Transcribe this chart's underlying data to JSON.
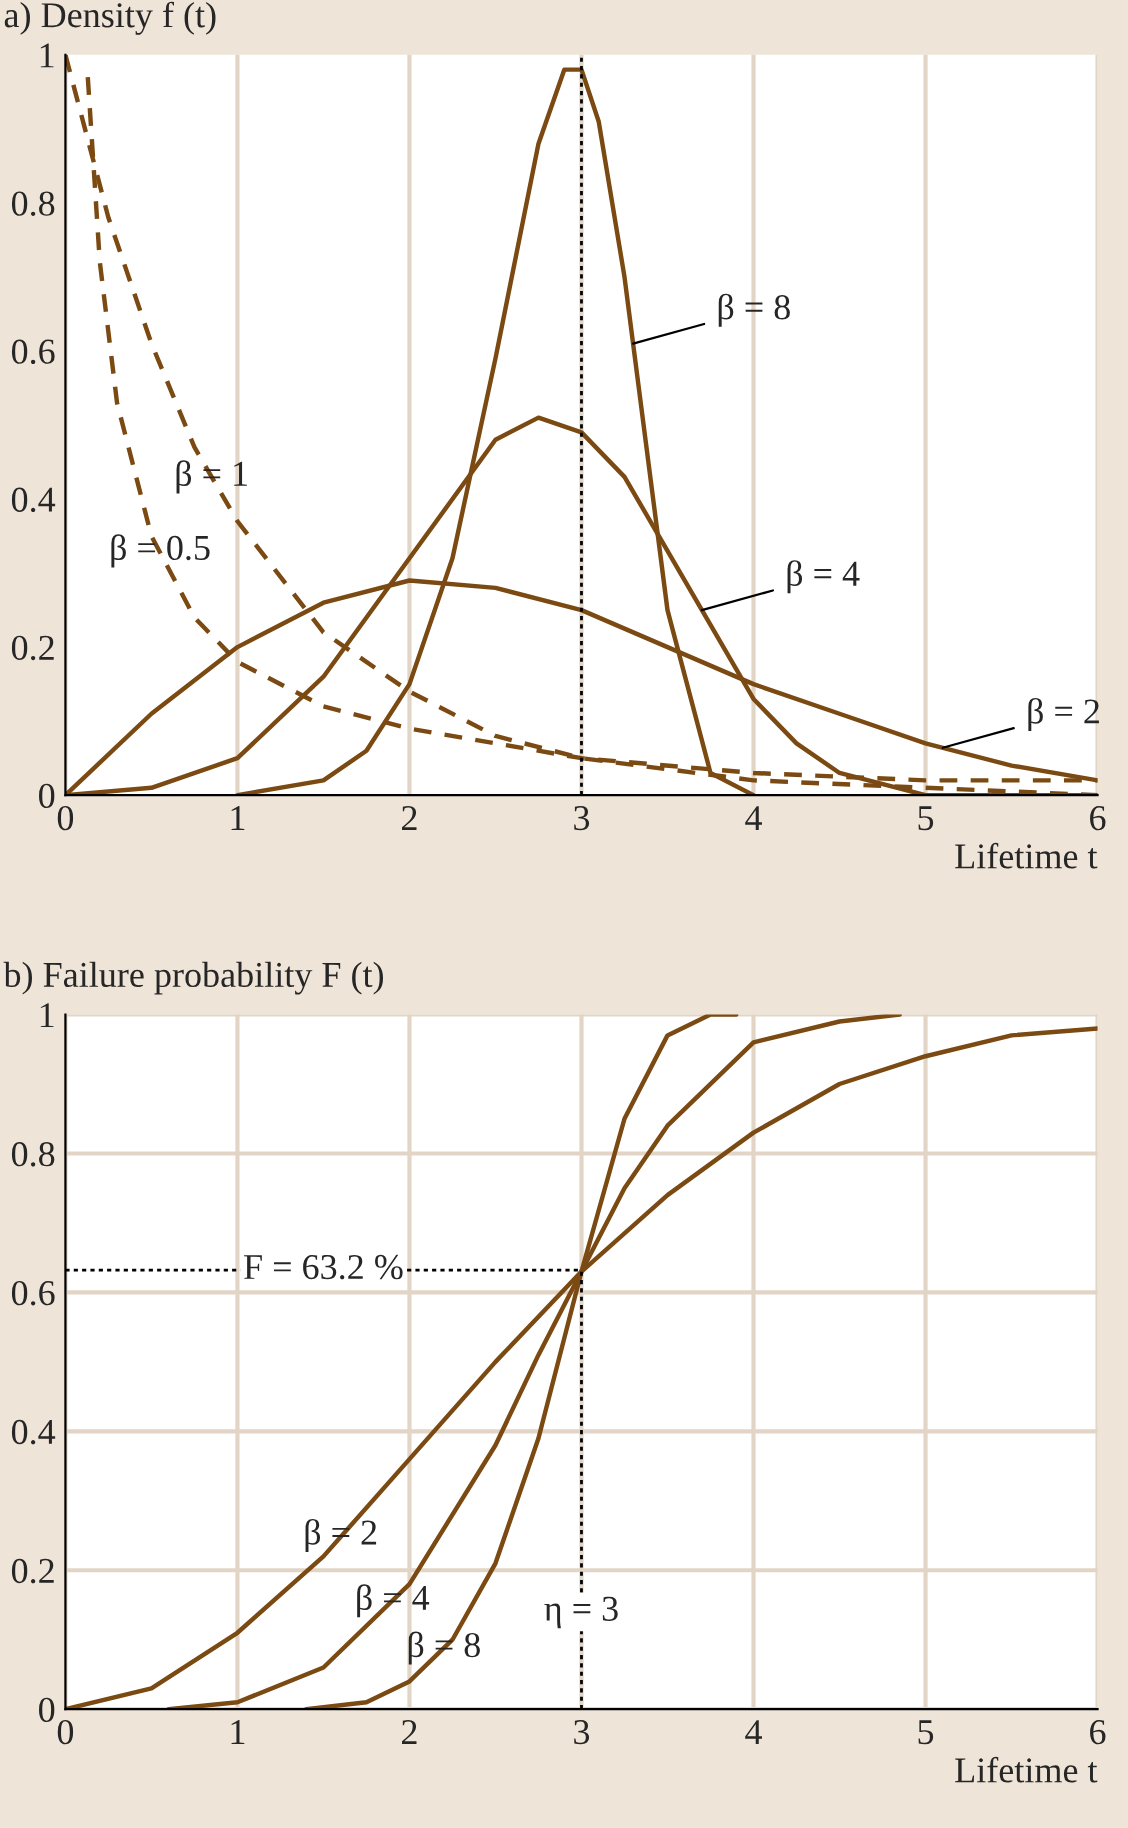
{
  "chart_data": [
    {
      "type": "line",
      "title": "a) Density f (t)",
      "xlabel": "Lifetime t",
      "xlim": [
        0,
        6
      ],
      "ylim": [
        0,
        1
      ],
      "xticks": [
        0,
        1,
        2,
        3,
        4,
        5,
        6
      ],
      "yticks": [
        0,
        0.2,
        0.4,
        0.6,
        0.8,
        1
      ],
      "grid": "x",
      "legend": false,
      "series": [
        {
          "color": "#7b4a12",
          "line_style": "dashed",
          "x": [
            0.13,
            0.2,
            0.3,
            0.5,
            0.75,
            1,
            1.5,
            2,
            2.5,
            3,
            4,
            5,
            6
          ],
          "values": [
            0.97,
            0.72,
            0.53,
            0.35,
            0.24,
            0.18,
            0.12,
            0.09,
            0.07,
            0.05,
            0.03,
            0.02,
            0.02
          ]
        },
        {
          "color": "#7b4a12",
          "line_style": "dashed",
          "x": [
            0,
            0.25,
            0.5,
            0.75,
            1,
            1.5,
            2,
            2.5,
            3,
            4,
            5,
            6
          ],
          "values": [
            1.0,
            0.78,
            0.61,
            0.47,
            0.37,
            0.22,
            0.14,
            0.08,
            0.05,
            0.02,
            0.01,
            0.0
          ]
        },
        {
          "color": "#7b4a12",
          "line_style": "solid",
          "x": [
            0,
            0.5,
            1,
            1.5,
            2,
            2.5,
            3,
            3.5,
            4,
            4.5,
            5,
            5.5,
            6
          ],
          "values": [
            0,
            0.11,
            0.2,
            0.26,
            0.29,
            0.28,
            0.25,
            0.2,
            0.15,
            0.11,
            0.07,
            0.04,
            0.02
          ]
        },
        {
          "color": "#7b4a12",
          "line_style": "solid",
          "x": [
            0,
            0.5,
            1,
            1.5,
            2,
            2.5,
            2.75,
            3,
            3.25,
            3.5,
            3.75,
            4,
            4.25,
            4.5,
            5,
            6
          ],
          "values": [
            0,
            0.01,
            0.05,
            0.16,
            0.32,
            0.48,
            0.51,
            0.49,
            0.43,
            0.33,
            0.23,
            0.13,
            0.07,
            0.03,
            0.0,
            0
          ]
        },
        {
          "color": "#7b4a12",
          "line_style": "solid",
          "x": [
            1,
            1.5,
            1.75,
            2,
            2.25,
            2.5,
            2.75,
            2.9,
            3,
            3.1,
            3.25,
            3.5,
            3.75,
            4
          ],
          "values": [
            0,
            0.02,
            0.06,
            0.15,
            0.32,
            0.59,
            0.88,
            0.98,
            0.98,
            0.91,
            0.7,
            0.25,
            0.03,
            0
          ]
        }
      ],
      "ref_lines": [
        {
          "axis": "x",
          "value": 3,
          "line_style": "dotted",
          "color": "#000000"
        }
      ],
      "annotations": [
        {
          "text": "β = 8",
          "x": 3.3,
          "y": 0.61
        },
        {
          "text": "β = 4",
          "x": 3.7,
          "y": 0.25
        },
        {
          "text": "β = 2",
          "x": 5.1,
          "y": 0.064
        },
        {
          "text": "β = 1",
          "x": 0.85,
          "y": 0.43
        },
        {
          "text": "β = 0.5",
          "x": 0.55,
          "y": 0.33
        }
      ]
    },
    {
      "type": "line",
      "title": "b) Failure probability F (t)",
      "xlabel": "Lifetime t",
      "xlim": [
        0,
        6
      ],
      "ylim": [
        0,
        1
      ],
      "xticks": [
        0,
        1,
        2,
        3,
        4,
        5,
        6
      ],
      "yticks": [
        0,
        0.2,
        0.4,
        0.6,
        0.8,
        1
      ],
      "grid": true,
      "legend": false,
      "series": [
        {
          "color": "#7b4a12",
          "line_style": "solid",
          "x": [
            0,
            0.5,
            1,
            1.5,
            2,
            2.5,
            3,
            3.5,
            4,
            4.5,
            5,
            5.5,
            6
          ],
          "values": [
            0,
            0.03,
            0.11,
            0.22,
            0.36,
            0.5,
            0.63,
            0.74,
            0.83,
            0.9,
            0.94,
            0.97,
            0.98
          ]
        },
        {
          "color": "#7b4a12",
          "line_style": "solid",
          "x": [
            0.6,
            1,
            1.5,
            2,
            2.5,
            2.75,
            3,
            3.25,
            3.5,
            4,
            4.5,
            4.85
          ],
          "values": [
            0.0,
            0.01,
            0.06,
            0.18,
            0.38,
            0.51,
            0.63,
            0.75,
            0.84,
            0.96,
            0.99,
            1.0
          ]
        },
        {
          "color": "#7b4a12",
          "line_style": "solid",
          "x": [
            1.4,
            1.75,
            2,
            2.25,
            2.5,
            2.75,
            3,
            3.25,
            3.5,
            3.75,
            3.9
          ],
          "values": [
            0.0,
            0.01,
            0.04,
            0.1,
            0.21,
            0.39,
            0.63,
            0.85,
            0.97,
            1.0,
            1.0
          ]
        }
      ],
      "ref_lines": [
        {
          "axis": "y",
          "value": 0.632,
          "label": "F = 63.2 %",
          "line_style": "dotted",
          "color": "#000000"
        },
        {
          "axis": "x",
          "value": 3,
          "label": "η = 3",
          "line_style": "dotted",
          "color": "#000000"
        }
      ],
      "annotations": [
        {
          "text": "β = 2",
          "x": 1.6,
          "y": 0.25
        },
        {
          "text": "β = 4",
          "x": 1.9,
          "y": 0.156
        },
        {
          "text": "β = 8",
          "x": 2.2,
          "y": 0.088
        }
      ]
    }
  ]
}
